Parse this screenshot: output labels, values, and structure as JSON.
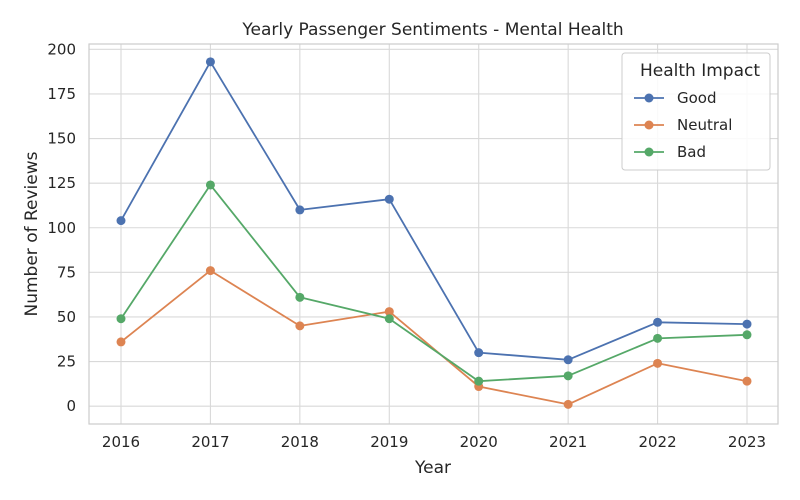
{
  "chart_data": {
    "type": "line",
    "title": "Yearly Passenger Sentiments - Mental Health",
    "xlabel": "Year",
    "ylabel": "Number of Reviews",
    "x": [
      "2016",
      "2017",
      "2018",
      "2019",
      "2020",
      "2021",
      "2022",
      "2023"
    ],
    "ylim": [
      -10,
      203
    ],
    "yticks": [
      "0",
      "25",
      "50",
      "75",
      "100",
      "125",
      "150",
      "175",
      "200"
    ],
    "grid": true,
    "legend": {
      "title": "Health Impact",
      "placement": "top-right"
    },
    "series": [
      {
        "name": "Good",
        "color": "#4c72b0",
        "values": [
          104,
          193,
          110,
          116,
          30,
          26,
          47,
          46
        ]
      },
      {
        "name": "Neutral",
        "color": "#dd8452",
        "values": [
          36,
          76,
          45,
          53,
          11,
          1,
          24,
          14
        ]
      },
      {
        "name": "Bad",
        "color": "#55a868",
        "values": [
          49,
          124,
          61,
          49,
          14,
          17,
          38,
          40
        ]
      }
    ]
  }
}
